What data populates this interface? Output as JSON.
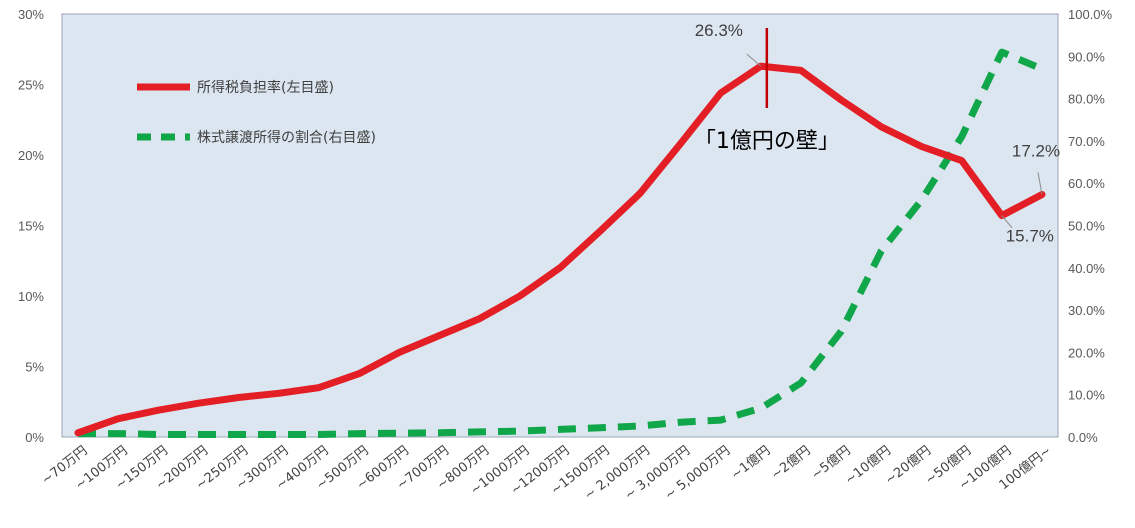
{
  "chart_data": {
    "type": "line",
    "categories": [
      "~70万円",
      "~100万円",
      "~150万円",
      "~200万円",
      "~250万円",
      "~300万円",
      "~400万円",
      "~500万円",
      "~600万円",
      "~700万円",
      "~800万円",
      "~1000万円",
      "~1200万円",
      "~1500万円",
      "~ 2,000万円",
      "~ 3,000万円",
      "~ 5,000万円",
      "~1億円",
      "~2億円",
      "~5億円",
      "~10億円",
      "~20億円",
      "~50億円",
      "~100億円",
      "100億円~"
    ],
    "series": [
      {
        "name": "所得税負担率(左目盛)",
        "axis": "left",
        "color": "#e31e24",
        "style": "solid",
        "values": [
          0.3,
          1.3,
          1.9,
          2.4,
          2.8,
          3.1,
          3.5,
          4.5,
          6.0,
          7.2,
          8.4,
          10.0,
          12.0,
          14.6,
          17.3,
          20.8,
          24.4,
          26.3,
          26.0,
          23.9,
          22.0,
          20.6,
          19.6,
          15.7,
          17.2
        ]
      },
      {
        "name": "株式譲渡所得の割合(右目盛)",
        "axis": "right",
        "color": "#10a64a",
        "style": "dashed",
        "values": [
          0.8,
          0.8,
          0.6,
          0.6,
          0.6,
          0.6,
          0.6,
          0.8,
          0.9,
          1.0,
          1.2,
          1.4,
          1.8,
          2.2,
          2.6,
          3.5,
          4.0,
          6.8,
          12.8,
          25.0,
          44.0,
          56.0,
          71.0,
          91.0,
          87.0
        ]
      }
    ],
    "y_left": {
      "ticks": [
        "0%",
        "5%",
        "10%",
        "15%",
        "20%",
        "25%",
        "30%"
      ],
      "ylim": [
        0,
        30
      ]
    },
    "y_right": {
      "ticks": [
        "0.0%",
        "10.0%",
        "20.0%",
        "30.0%",
        "40.0%",
        "50.0%",
        "60.0%",
        "70.0%",
        "80.0%",
        "90.0%",
        "100.0%"
      ],
      "ylim": [
        0,
        100
      ]
    },
    "data_labels": [
      {
        "text": "26.3%",
        "series": 0,
        "index": 17
      },
      {
        "text": "15.7%",
        "series": 0,
        "index": 23
      },
      {
        "text": "17.2%",
        "series": 0,
        "index": 24
      }
    ],
    "annotation": {
      "text": "「1億円の壁」",
      "index": 17,
      "line_color": "#c00000"
    },
    "legend_position": "top-left",
    "plot_background": "#dce6f0",
    "grid": false
  }
}
